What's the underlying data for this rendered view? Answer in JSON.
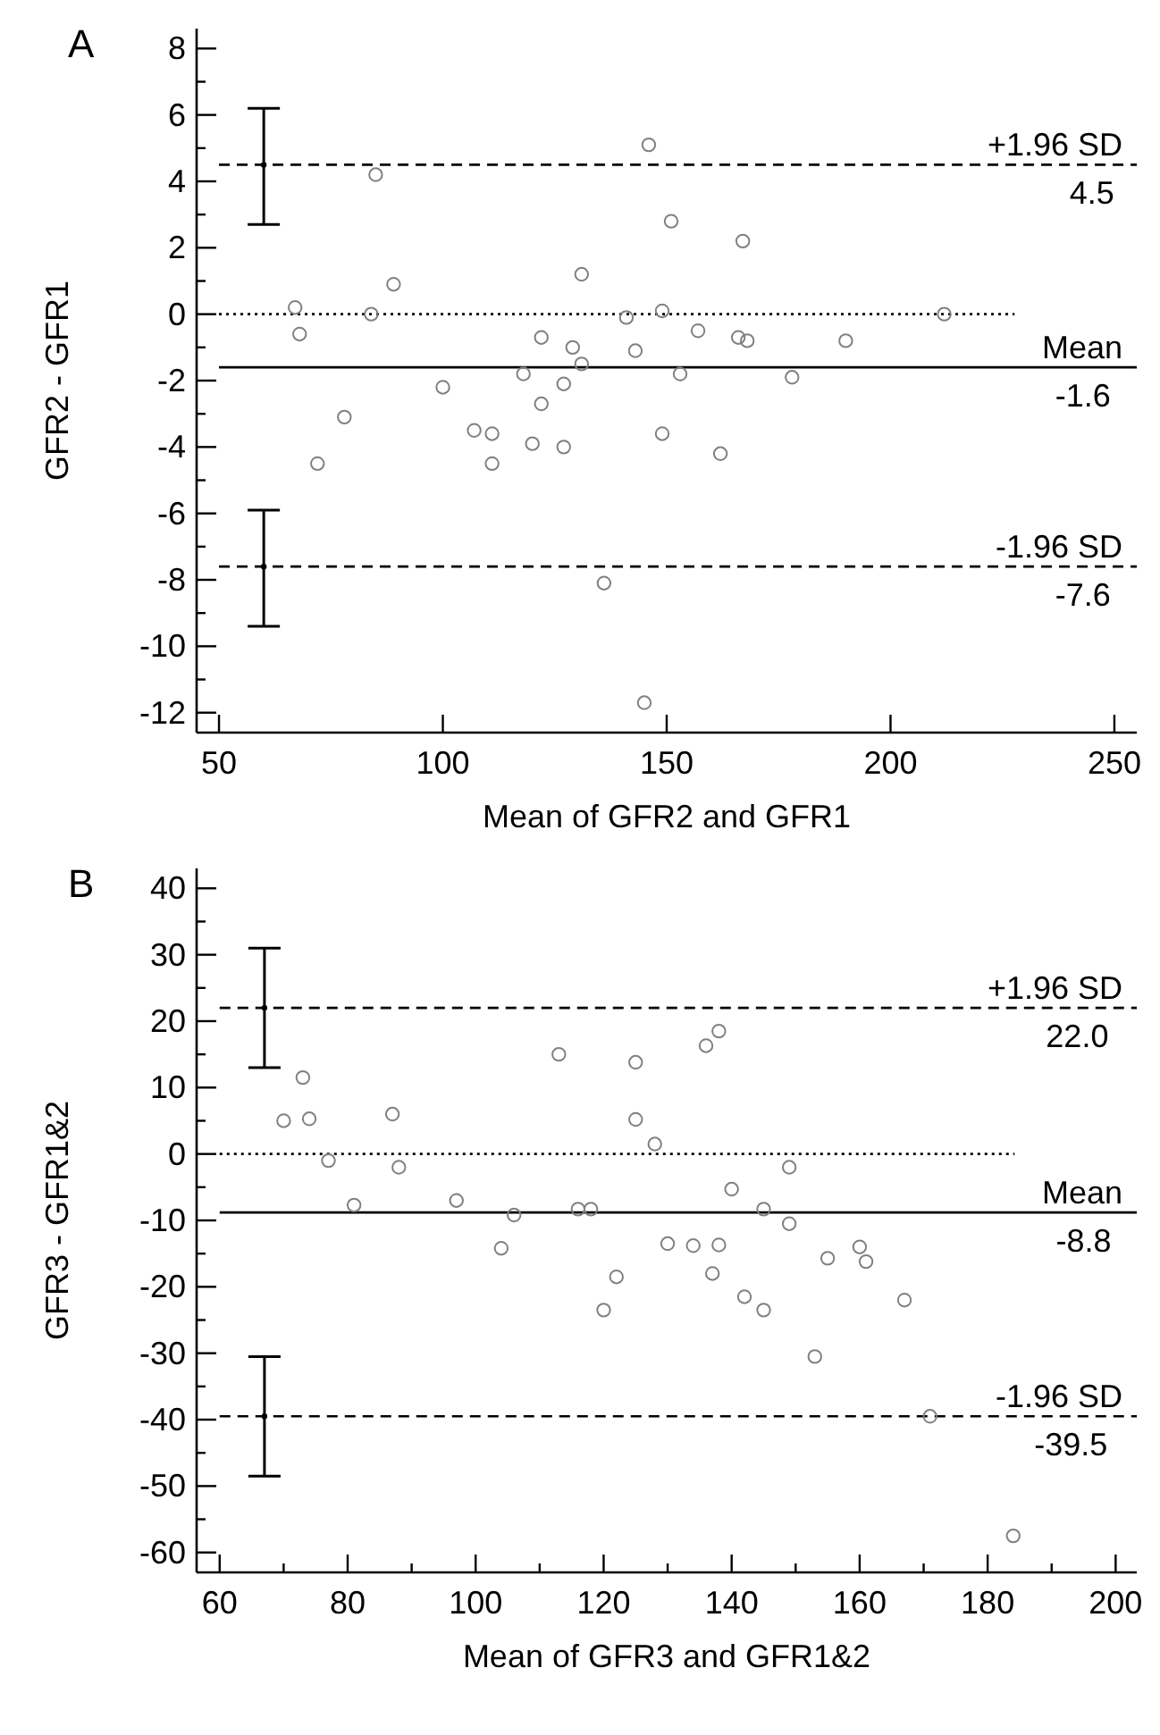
{
  "chart_data": [
    {
      "type": "scatter",
      "title": "A",
      "xlabel": "Mean of GFR2 and GFR1",
      "ylabel": "GFR2 - GFR1",
      "grid": false,
      "xlim": [
        45,
        255
      ],
      "xticks": [
        50,
        100,
        150,
        200,
        250
      ],
      "ylim": [
        -12.6,
        8.6
      ],
      "yticks": [
        -12,
        {
          "value": -11,
          "label": null
        },
        -10,
        {
          "value": -9,
          "label": null
        },
        -8,
        {
          "value": -7,
          "label": null
        },
        -6,
        {
          "value": -5,
          "label": null
        },
        -4,
        {
          "value": -3,
          "label": null
        },
        -2,
        {
          "value": -1,
          "label": null
        },
        0,
        {
          "value": 1,
          "label": null
        },
        2,
        {
          "value": 3,
          "label": null
        },
        4,
        {
          "value": 5,
          "label": null
        },
        6,
        {
          "value": 7,
          "label": null
        },
        8
      ],
      "series": [
        {
          "marker": "circle",
          "color": "#808080",
          "x": [
            67,
            68,
            72,
            78,
            84,
            85,
            89,
            100,
            107,
            111,
            111,
            118,
            120,
            122,
            122,
            127,
            127,
            129,
            131,
            131,
            141,
            143,
            146,
            149,
            149,
            151,
            153,
            157,
            162,
            166,
            167,
            168,
            178,
            190,
            212,
            136,
            145
          ],
          "values": [
            0.2,
            -0.6,
            -4.5,
            -3.1,
            0,
            4.2,
            0.9,
            -2.2,
            -3.5,
            -3.6,
            -4.5,
            -1.8,
            -3.9,
            -0.7,
            -2.7,
            -2.1,
            -4.0,
            -1.0,
            -1.5,
            1.2,
            -0.1,
            -1.1,
            5.1,
            0.1,
            -3.6,
            2.8,
            -1.8,
            -0.5,
            -4.2,
            -0.7,
            2.2,
            -0.8,
            -1.9,
            -0.8,
            0.0,
            -8.1,
            -11.7
          ]
        },
        {
          "color": "#000000",
          "x": [
            60,
            60
          ],
          "values": [
            4.5,
            -7.6
          ],
          "errors": [
            [
              2.7,
              6.2
            ],
            [
              -9.4,
              -5.9
            ]
          ]
        }
      ],
      "ref_lines": [
        {
          "axis": "y",
          "value": 4.5,
          "label": "+1.96 SD",
          "color": "#000000",
          "line_style": "dashed"
        },
        {
          "axis": "y",
          "value": -1.6,
          "label": "Mean",
          "color": "#000000",
          "line_style": "solid"
        },
        {
          "axis": "y",
          "value": -7.6,
          "label": "-1.96 SD",
          "color": "#000000",
          "line_style": "dashed"
        },
        {
          "axis": "y",
          "value": 0,
          "label": null,
          "color": "#000000",
          "line_style": "dotted"
        }
      ],
      "annotations": [
        {
          "text": "4.5",
          "x": 245,
          "y": 4.5
        },
        {
          "text": "-1.6",
          "x": 243,
          "y": -1.6
        },
        {
          "text": "-7.6",
          "x": 243,
          "y": -7.6
        }
      ]
    },
    {
      "type": "scatter",
      "title": "B",
      "xlabel": "Mean of GFR3 and GFR1&2",
      "ylabel": "GFR3 - GFR1&2",
      "grid": false,
      "xlim": [
        56.4,
        203.3
      ],
      "xticks": [
        60,
        {
          "value": 70,
          "label": null
        },
        80,
        {
          "value": 90,
          "label": null
        },
        100,
        {
          "value": 110,
          "label": null
        },
        120,
        {
          "value": 130,
          "label": null
        },
        140,
        {
          "value": 150,
          "label": null
        },
        160,
        {
          "value": 170,
          "label": null
        },
        180,
        {
          "value": 190,
          "label": null
        },
        200
      ],
      "ylim": [
        -63,
        43
      ],
      "yticks": [
        -60,
        {
          "value": -55,
          "label": null
        },
        -50,
        {
          "value": -45,
          "label": null
        },
        -40,
        {
          "value": -35,
          "label": null
        },
        -30,
        {
          "value": -25,
          "label": null
        },
        -20,
        {
          "value": -15,
          "label": null
        },
        -10,
        {
          "value": -5,
          "label": null
        },
        0,
        {
          "value": 5,
          "label": null
        },
        10,
        {
          "value": 15,
          "label": null
        },
        20,
        {
          "value": 25,
          "label": null
        },
        30,
        {
          "value": 35,
          "label": null
        },
        40
      ],
      "series": [
        {
          "marker": "circle",
          "color": "#808080",
          "x": [
            70,
            73,
            74,
            77,
            81,
            87,
            88,
            97,
            104,
            106,
            113,
            116,
            118,
            120,
            122,
            125,
            125,
            128,
            130,
            134,
            136,
            138,
            138,
            137,
            140,
            142,
            145,
            145,
            149,
            149,
            153,
            155,
            160,
            161,
            167,
            171,
            184
          ],
          "values": [
            5,
            11.5,
            5.3,
            -1,
            -7.7,
            6,
            -2,
            -7,
            -14.2,
            -9.2,
            15,
            -8.3,
            -8.3,
            -23.5,
            -18.5,
            13.8,
            5.2,
            1.5,
            -13.5,
            -13.8,
            16.3,
            18.5,
            -13.7,
            -18,
            -5.3,
            -21.5,
            -8.3,
            -23.5,
            -2,
            -10.5,
            -30.5,
            -15.7,
            -14,
            -16.2,
            -22,
            -39.5,
            -57.5
          ]
        },
        {
          "color": "#000000",
          "x": [
            67,
            67
          ],
          "values": [
            22.0,
            -39.5
          ],
          "errors": [
            [
              13,
              31
            ],
            [
              -48.5,
              -30.5
            ]
          ]
        }
      ],
      "ref_lines": [
        {
          "axis": "y",
          "value": 22.0,
          "label": "+1.96 SD",
          "color": "#000000",
          "line_style": "dashed"
        },
        {
          "axis": "y",
          "value": -8.8,
          "label": "Mean",
          "color": "#000000",
          "line_style": "solid"
        },
        {
          "axis": "y",
          "value": -39.5,
          "label": "-1.96 SD",
          "color": "#000000",
          "line_style": "dashed"
        },
        {
          "axis": "y",
          "value": 0,
          "label": null,
          "color": "#000000",
          "line_style": "dotted"
        }
      ],
      "annotations": [
        {
          "text": "22.0",
          "x": 194,
          "y": 22.0
        },
        {
          "text": "-8.8",
          "x": 195,
          "y": -8.8
        },
        {
          "text": "-39.5",
          "x": 193,
          "y": -39.5
        }
      ]
    }
  ]
}
